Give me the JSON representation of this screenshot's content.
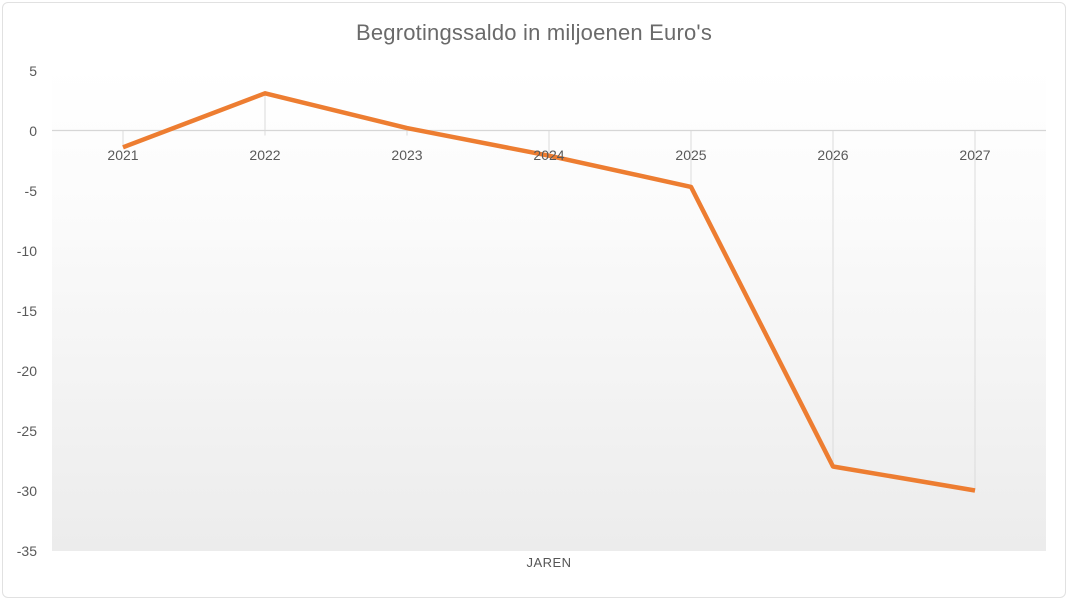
{
  "chart_data": {
    "type": "line",
    "title": "Begrotingssaldo in miljoenen Euro's",
    "xlabel": "JAREN",
    "ylabel": "",
    "categories": [
      "2021",
      "2022",
      "2023",
      "2024",
      "2025",
      "2026",
      "2027"
    ],
    "values": [
      -1.4,
      3.1,
      0.2,
      -2.1,
      -4.7,
      -28,
      -30
    ],
    "ylim": [
      -35,
      5
    ],
    "yticks": [
      5,
      0,
      -5,
      -10,
      -15,
      -20,
      -25,
      -30,
      -35
    ],
    "legend": "none",
    "grid": "vertical drop lines from each point to the zero axis only",
    "line_color": "#ED7D31",
    "axis_color": "#D6D6D6",
    "gridline_color": "#DBDBDB",
    "label_color": "#595959",
    "title_color": "#6A6A6A",
    "plot_bg_top": "#FFFFFF",
    "plot_bg_bottom": "#ECECEC"
  }
}
